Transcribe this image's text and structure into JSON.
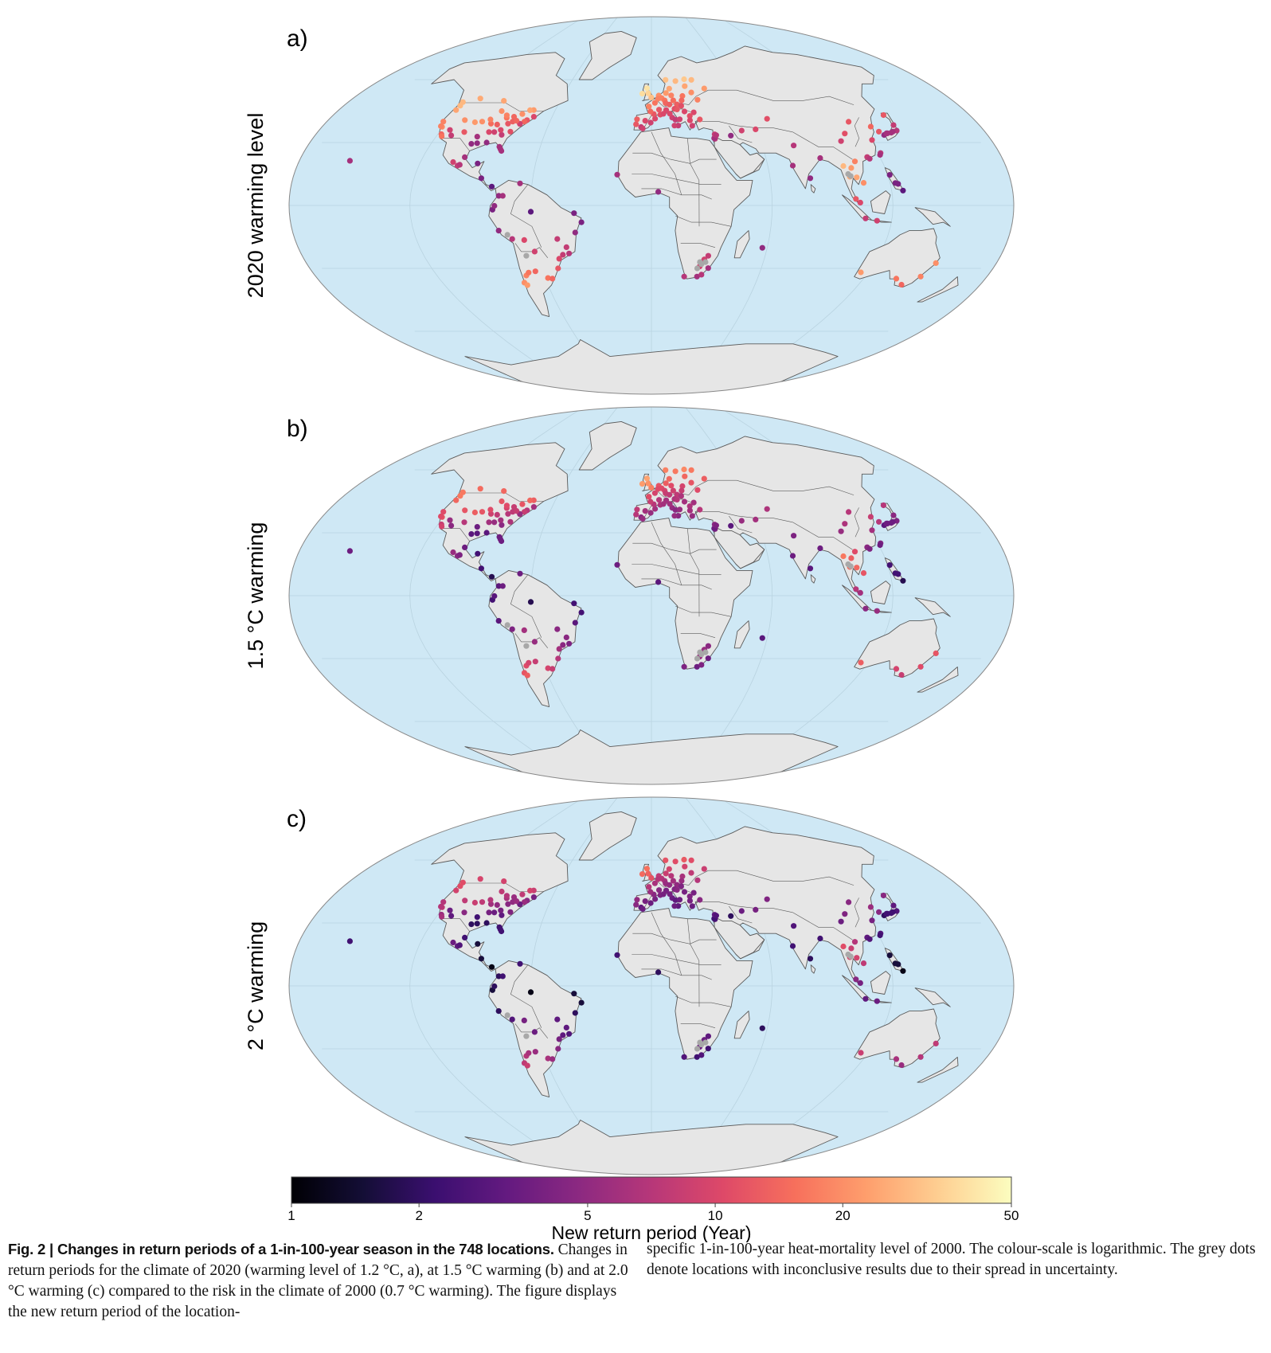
{
  "panels": [
    {
      "id": "a",
      "label": "a)",
      "ylabel": "2020 warming level",
      "shift": 1.0
    },
    {
      "id": "b",
      "label": "b)",
      "ylabel": "1.5 °C warming",
      "shift": 1.7
    },
    {
      "id": "c",
      "label": "c)",
      "ylabel": "2 °C warming",
      "shift": 2.6
    }
  ],
  "colorbar": {
    "scale": "log",
    "min": 1,
    "max": 50,
    "ticks": [
      "1",
      "2",
      "5",
      "10",
      "20",
      "50"
    ],
    "label": "New return period (Year)",
    "colormap": "magma"
  },
  "colors": {
    "ocean": "#cfe8f5",
    "land": "#e6e6e6",
    "border": "#5a5a5a",
    "inconclusive": "#a8a8a8"
  },
  "caption": {
    "figlabel": "Fig. 2 | Changes in return periods of a 1-in-100-year season in the 748 locations.",
    "text_left": " Changes in return periods for the climate of 2020 (warming level of 1.2 °C, a), at 1.5 °C warming (b) and at 2.0 °C warming (c) compared to the risk in the climate of 2000 (0.7 °C warming). The figure displays the new return period of the location-",
    "text_right": "specific 1-in-100-year heat-mortality level of 2000. The colour-scale is logarithmic. The grey dots denote locations with inconclusive results due to their spread in uncertainty."
  }
}
